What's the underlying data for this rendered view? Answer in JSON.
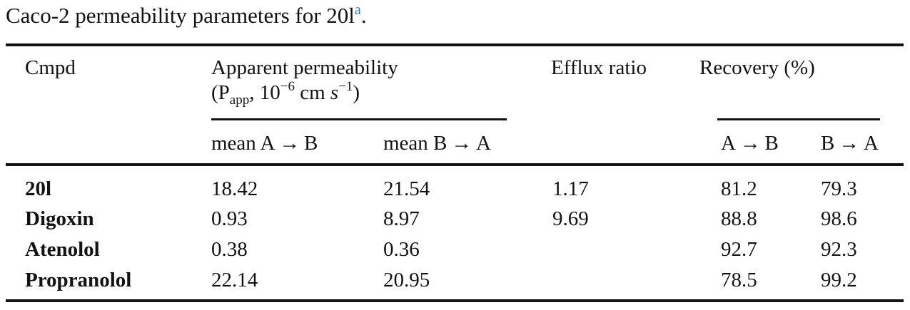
{
  "title": {
    "text": "Caco-2 permeability parameters for 20l",
    "footnote_marker": "a",
    "period": "."
  },
  "colors": {
    "text": "#131313",
    "footnote_marker_blue": "#2e7ebc",
    "rules": "#131313",
    "background": "#ffffff"
  },
  "table": {
    "header": {
      "cmpd": "Cmpd",
      "apparent_permeability_line1": "Apparent permeability",
      "papp_parts": {
        "open_paren_p": "(P",
        "sub_app": "app",
        "comma_ten": ", 10",
        "sup_minus6": "−6",
        "cm": " cm ",
        "s_italic": "s",
        "sup_minus1": "−1",
        "close_paren": ")"
      },
      "efflux_ratio": "Efflux ratio",
      "recovery_pct": "Recovery (%)",
      "sub_mean_a_to_b": "mean A → B",
      "sub_mean_b_to_a": "mean B → A",
      "sub_recovery_a_to_b": "A → B",
      "sub_recovery_b_to_a": "B → A"
    },
    "rows": [
      {
        "cmpd": "20l",
        "mean_ab": "18.42",
        "mean_ba": "21.54",
        "efflux_ratio": "1.17",
        "recovery_ab": "81.2",
        "recovery_ba": "79.3"
      },
      {
        "cmpd": "Digoxin",
        "mean_ab": "0.93",
        "mean_ba": "8.97",
        "efflux_ratio": "9.69",
        "recovery_ab": "88.8",
        "recovery_ba": "98.6"
      },
      {
        "cmpd": "Atenolol",
        "mean_ab": "0.38",
        "mean_ba": "0.36",
        "efflux_ratio": "",
        "recovery_ab": "92.7",
        "recovery_ba": "92.3"
      },
      {
        "cmpd": "Propranolol",
        "mean_ab": "22.14",
        "mean_ba": "20.95",
        "efflux_ratio": "",
        "recovery_ab": "78.5",
        "recovery_ba": "99.2"
      }
    ]
  }
}
